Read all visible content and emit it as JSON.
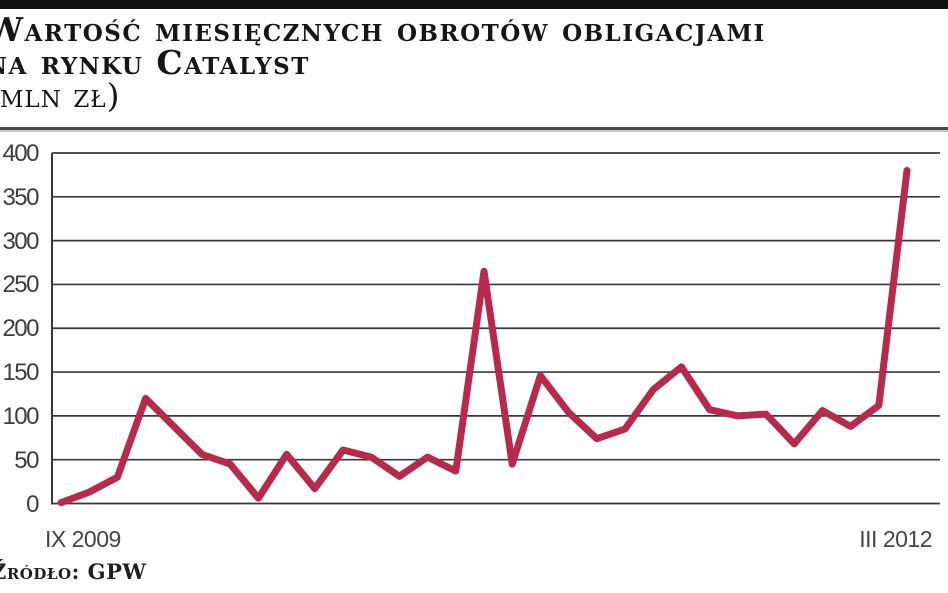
{
  "page": {
    "background_color": "#ffffff",
    "top_bar_color": "#101010"
  },
  "header": {
    "title_line1": "Wartość miesięcznych obrotów obligacjami",
    "title_line2": "na rynku Catalyst",
    "unit_label": "(mln zł)"
  },
  "source": {
    "label": "Źródło: GPW"
  },
  "chart_data": {
    "type": "line",
    "title": "Wartość miesięcznych obrotów obligacjami na rynku Catalyst (mln zł)",
    "ylabel": "mln zł",
    "ylim": [
      0,
      400
    ],
    "y_ticks": [
      0,
      50,
      100,
      150,
      200,
      250,
      300,
      350,
      400
    ],
    "x_frequency": "monthly",
    "x_tick_labels": [
      "IX 2009",
      "III 2012"
    ],
    "grid": "horizontal",
    "legend": "none",
    "line_color": "#b82a4d",
    "grid_color": "#383838",
    "values": [
      1,
      13,
      30,
      120,
      88,
      56,
      45,
      6,
      56,
      17,
      61,
      53,
      31,
      53,
      37,
      265,
      45,
      146,
      104,
      74,
      85,
      130,
      156,
      107,
      100,
      102,
      68,
      106,
      88,
      112,
      380
    ]
  }
}
